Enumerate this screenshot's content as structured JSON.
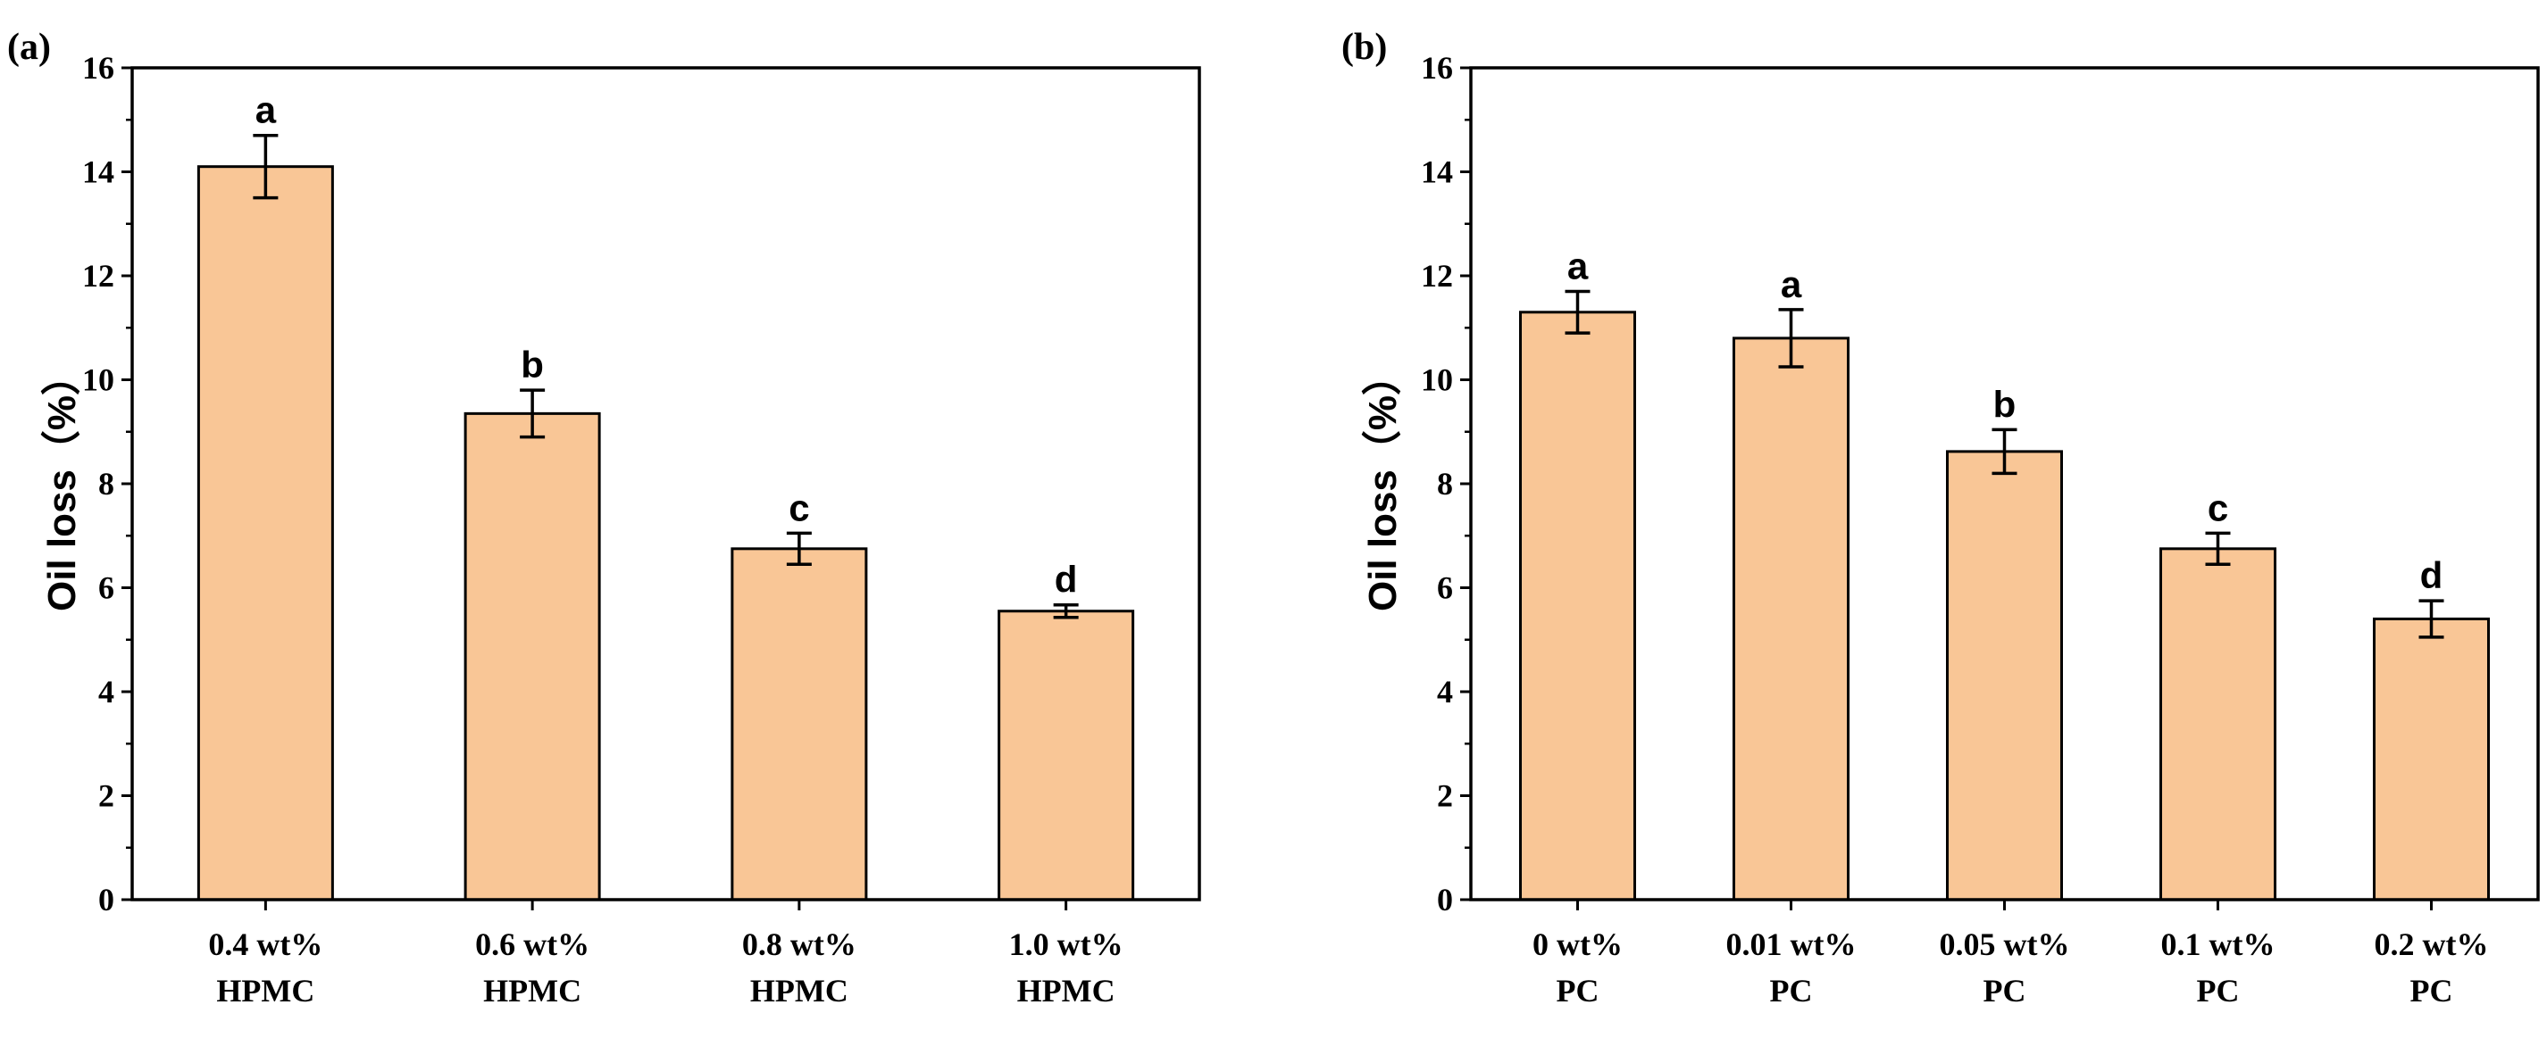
{
  "chart_data": [
    {
      "panel": "(a)",
      "type": "bar",
      "categories": [
        [
          "0.4 wt%",
          "HPMC"
        ],
        [
          "0.6 wt%",
          "HPMC"
        ],
        [
          "0.8 wt%",
          "HPMC"
        ],
        [
          "1.0 wt%",
          "HPMC"
        ]
      ],
      "values": [
        14.1,
        9.35,
        6.75,
        5.55
      ],
      "errors": [
        0.6,
        0.45,
        0.3,
        0.12
      ],
      "significance": [
        "a",
        "b",
        "c",
        "d"
      ],
      "ylabel": "Oil loss（%）",
      "xlabel": "",
      "ylim": [
        0,
        16
      ],
      "yticks": [
        0,
        2,
        4,
        6,
        8,
        10,
        12,
        14,
        16
      ],
      "bar_color": "#F9C696",
      "edge_color": "#000000"
    },
    {
      "panel": "(b)",
      "type": "bar",
      "categories": [
        [
          "0 wt%",
          "PC"
        ],
        [
          "0.01 wt%",
          "PC"
        ],
        [
          "0.05 wt%",
          "PC"
        ],
        [
          "0.1 wt%",
          "PC"
        ],
        [
          "0.2 wt%",
          "PC"
        ]
      ],
      "values": [
        11.3,
        10.8,
        8.62,
        6.75,
        5.4
      ],
      "errors": [
        0.4,
        0.55,
        0.42,
        0.3,
        0.35
      ],
      "significance": [
        "a",
        "a",
        "b",
        "c",
        "d"
      ],
      "ylabel": "Oil loss（%）",
      "xlabel": "",
      "ylim": [
        0,
        16
      ],
      "yticks": [
        0,
        2,
        4,
        6,
        8,
        10,
        12,
        14,
        16
      ],
      "bar_color": "#F9C696",
      "edge_color": "#000000"
    }
  ]
}
